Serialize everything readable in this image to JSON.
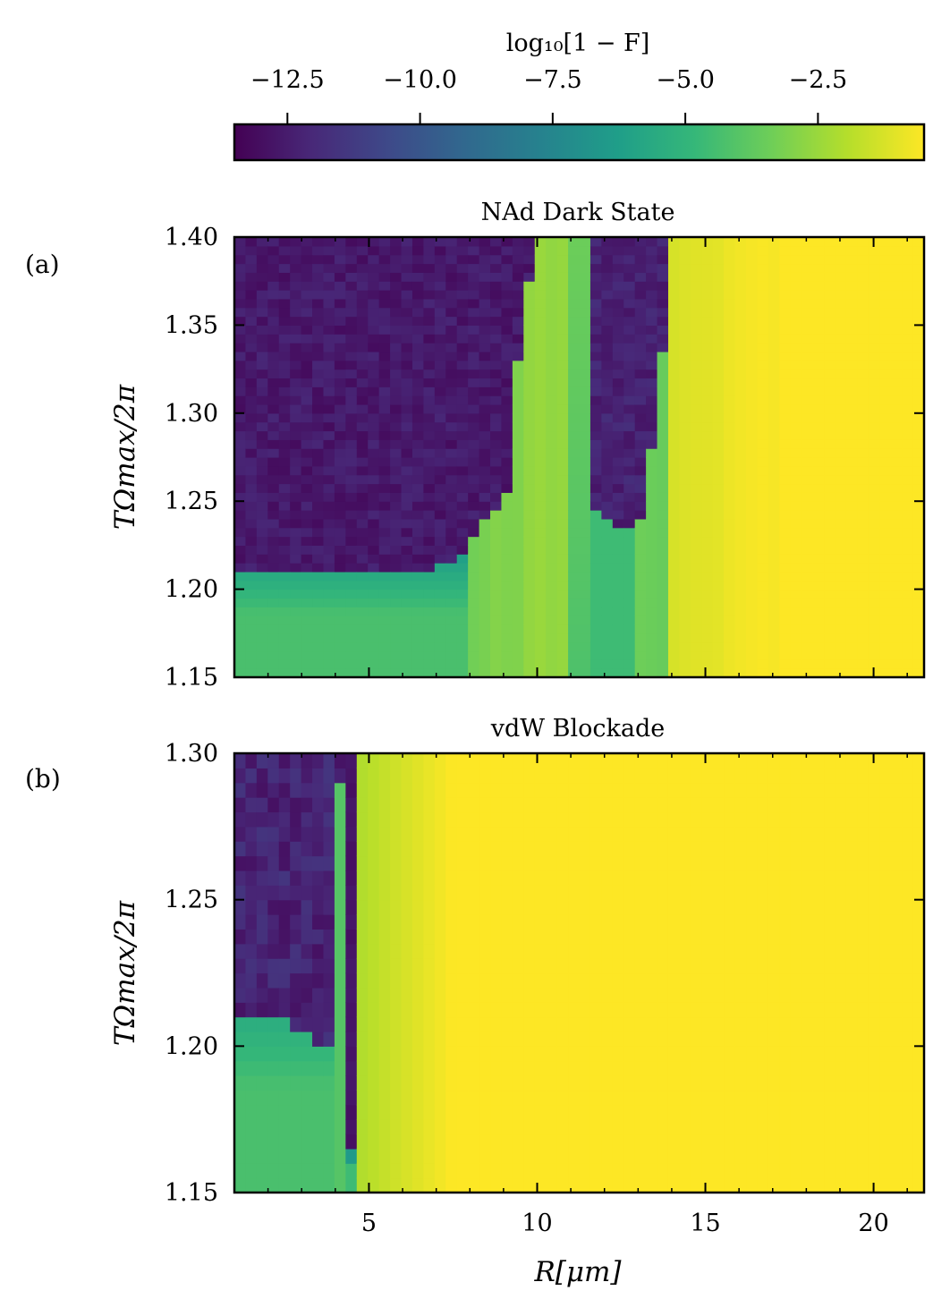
{
  "colorbar": {
    "label": "log₁₀[1 − F]",
    "range": [
      -13.5,
      -0.5
    ],
    "ticks": [
      -12.5,
      -10.0,
      -7.5,
      -5.0,
      -2.5
    ],
    "tick_labels": [
      "−12.5",
      "−10.0",
      "−7.5",
      "−5.0",
      "−2.5"
    ],
    "colormap": [
      "#440154",
      "#482878",
      "#3e4989",
      "#31688e",
      "#26828e",
      "#1f9e89",
      "#35b779",
      "#6ece58",
      "#b5de2b",
      "#fde725"
    ]
  },
  "xaxis": {
    "label": "R[μm]",
    "range": [
      1,
      21.5
    ],
    "ticks": [
      5,
      10,
      15,
      20
    ],
    "tick_labels": [
      "5",
      "10",
      "15",
      "20"
    ]
  },
  "chart_data": [
    {
      "type": "heatmap",
      "panel": "(a)",
      "title": "NAd Dark State",
      "ylabel": "TΩmax/2π",
      "xlim": [
        1,
        21.5
      ],
      "ylim": [
        1.15,
        1.4
      ],
      "yticks": [
        1.15,
        1.2,
        1.25,
        1.3,
        1.35,
        1.4
      ],
      "ytick_labels": [
        "1.15",
        "1.20",
        "1.25",
        "1.30",
        "1.35",
        "1.40"
      ],
      "grid": {
        "nx": 62,
        "ny": 50
      },
      "z_range": [
        -13.5,
        -0.5
      ],
      "regions": [
        {
          "description": "dark state, above threshold",
          "x": [
            1,
            9.8
          ],
          "y_lower_boundary": [
            [
              1,
              1.21
            ],
            [
              6.5,
              1.21
            ],
            [
              7.5,
              1.215
            ],
            [
              8.3,
              1.235
            ],
            [
              8.7,
              1.245
            ],
            [
              9.1,
              1.255
            ],
            [
              9.2,
              1.3
            ],
            [
              9.6,
              1.35
            ],
            [
              9.8,
              1.38
            ],
            [
              9.9,
              1.4
            ]
          ],
          "value": -12.6
        },
        {
          "description": "green plateau below threshold",
          "x": [
            1,
            8.0
          ],
          "y": [
            1.15,
            1.21
          ],
          "value": -4.2
        },
        {
          "description": "green strip",
          "x": [
            11.0,
            11.4
          ],
          "y": [
            1.15,
            1.4
          ],
          "value": -4.3
        },
        {
          "description": "dark pocket",
          "x": [
            11.5,
            13.8
          ],
          "y": [
            1.24,
            1.4
          ],
          "value": -12.4
        },
        {
          "description": "yellow-green gradient",
          "x": [
            8.0,
            17.0
          ],
          "y": [
            1.15,
            1.4
          ],
          "value_range": [
            -3.3,
            -0.5
          ]
        },
        {
          "description": "saturated yellow",
          "x": [
            17.0,
            21.5
          ],
          "y": [
            1.15,
            1.4
          ],
          "value": -0.5
        }
      ]
    },
    {
      "type": "heatmap",
      "panel": "(b)",
      "title": "vdW Blockade",
      "ylabel": "TΩmax/2π",
      "xlim": [
        1,
        21.5
      ],
      "ylim": [
        1.15,
        1.3
      ],
      "yticks": [
        1.15,
        1.2,
        1.25,
        1.3
      ],
      "ytick_labels": [
        "1.15",
        "1.20",
        "1.25",
        "1.30"
      ],
      "grid": {
        "nx": 62,
        "ny": 30
      },
      "z_range": [
        -13.5,
        -0.5
      ],
      "regions": [
        {
          "description": "dark state, above threshold",
          "x": [
            1,
            4.8
          ],
          "y_lower_boundary": [
            [
              1,
              1.21
            ],
            [
              2.6,
              1.21
            ],
            [
              3.0,
              1.205
            ],
            [
              3.3,
              1.2
            ],
            [
              4.0,
              1.2
            ]
          ],
          "value": -12.3
        },
        {
          "description": "green plateau below threshold",
          "x": [
            1,
            4.0
          ],
          "y": [
            1.15,
            1.21
          ],
          "value": -4.2
        },
        {
          "description": "green strip",
          "x": [
            4.0,
            4.4
          ],
          "y": [
            1.15,
            1.29
          ],
          "value": -4.0
        },
        {
          "description": "dark column",
          "x": [
            4.4,
            4.8
          ],
          "y": [
            1.165,
            1.3
          ],
          "value": -12.8
        },
        {
          "description": "yellow gradient",
          "x": [
            4.8,
            7.5
          ],
          "y": [
            1.15,
            1.3
          ],
          "value_range": [
            -2.0,
            -0.5
          ]
        },
        {
          "description": "saturated yellow",
          "x": [
            7.5,
            21.5
          ],
          "y": [
            1.15,
            1.3
          ],
          "value": -0.5
        }
      ]
    }
  ]
}
